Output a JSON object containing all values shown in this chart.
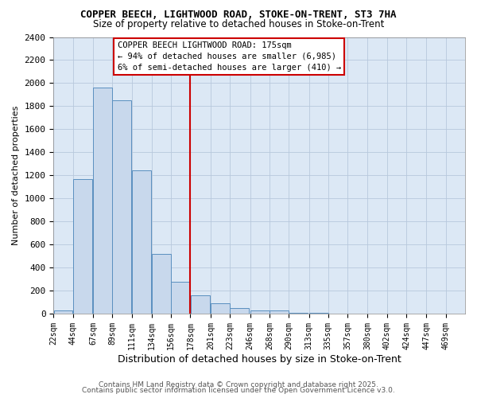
{
  "title": "COPPER BEECH, LIGHTWOOD ROAD, STOKE-ON-TRENT, ST3 7HA",
  "subtitle": "Size of property relative to detached houses in Stoke-on-Trent",
  "xlabel": "Distribution of detached houses by size in Stoke-on-Trent",
  "ylabel": "Number of detached properties",
  "footer1": "Contains HM Land Registry data © Crown copyright and database right 2025.",
  "footer2": "Contains public sector information licensed under the Open Government Licence v3.0.",
  "property_label": "COPPER BEECH LIGHTWOOD ROAD: 175sqm",
  "stat1": "← 94% of detached houses are smaller (6,985)",
  "stat2": "6% of semi-detached houses are larger (410) →",
  "bar_color": "#c8d8ec",
  "bar_edge_color": "#5a8fbf",
  "highlight_color": "#cc0000",
  "background_color": "#ffffff",
  "plot_bg_color": "#dce8f5",
  "bins": [
    22,
    44,
    67,
    89,
    111,
    134,
    156,
    178,
    201,
    223,
    246,
    268,
    290,
    313,
    335,
    357,
    380,
    402,
    424,
    447,
    469
  ],
  "bin_labels": [
    "22sqm",
    "44sqm",
    "67sqm",
    "89sqm",
    "111sqm",
    "134sqm",
    "156sqm",
    "178sqm",
    "201sqm",
    "223sqm",
    "246sqm",
    "268sqm",
    "290sqm",
    "313sqm",
    "335sqm",
    "357sqm",
    "380sqm",
    "402sqm",
    "424sqm",
    "447sqm",
    "469sqm"
  ],
  "counts": [
    25,
    1170,
    1960,
    1850,
    1240,
    515,
    275,
    160,
    90,
    50,
    30,
    25,
    10,
    5,
    3,
    2,
    1,
    1,
    0,
    0
  ],
  "red_line_bin": 7,
  "ylim": [
    0,
    2400
  ],
  "yticks": [
    0,
    200,
    400,
    600,
    800,
    1000,
    1200,
    1400,
    1600,
    1800,
    2000,
    2200,
    2400
  ]
}
